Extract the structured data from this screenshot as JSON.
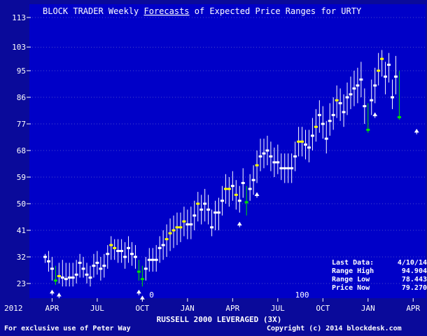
{
  "title_prefix": "BLOCK TRADER Weekly ",
  "title_link": "Forecasts",
  "title_suffix": " of Expected Price Ranges for URTY",
  "x_axis_title": "RUSSELL 2000 LEVERAGED (3X)",
  "footer_left": "For exclusive use of Peter Way",
  "footer_right": "Copyright (c) 2014 blockdesk.com",
  "summary": {
    "last_data_label": "Last Data:",
    "last_data_value": "4/10/14",
    "range_high_label": "Range High",
    "range_high_value": "94.904",
    "range_low_label": "Range Low",
    "range_low_value": "78.443",
    "price_now_label": "Price Now",
    "price_now_value": "79.270"
  },
  "colors": {
    "background": "#0a0a9a",
    "plot_background": "#0000c8",
    "range_line": "#ffffff",
    "price_white": "#ffffff",
    "price_yellow": "#ffff00",
    "price_green": "#00e000",
    "grid": "#9090d0"
  },
  "chart_data": {
    "type": "range_bars",
    "title": "BLOCK TRADER Weekly Forecasts of Expected Price Ranges for URTY",
    "xlabel": "RUSSELL 2000 LEVERAGED (3X)",
    "ylim": [
      19,
      116
    ],
    "y_ticks": [
      23,
      32,
      41,
      50,
      59,
      68,
      77,
      86,
      95,
      103,
      113
    ],
    "x_ticks": [
      {
        "week": 2,
        "label": "APR"
      },
      {
        "week": 15,
        "label": "JUL"
      },
      {
        "week": 28,
        "label": "OCT"
      },
      {
        "week": 41,
        "label": "JAN"
      },
      {
        "week": 54,
        "label": "APR"
      },
      {
        "week": 67,
        "label": "JUL"
      },
      {
        "week": 80,
        "label": "OCT"
      },
      {
        "week": 93,
        "label": "JAN"
      },
      {
        "week": 106,
        "label": "APR"
      }
    ],
    "year_label": "2012",
    "x_annotations": [
      {
        "week": 30,
        "text": "0"
      },
      {
        "week": 72,
        "text": "100"
      }
    ],
    "arrow_weeks": [
      2,
      4,
      27,
      28,
      56,
      61,
      95,
      107
    ],
    "bars": [
      {
        "week": 0,
        "low": 30,
        "high": 33,
        "price": 32,
        "flag": "white"
      },
      {
        "week": 1,
        "low": 27,
        "high": 34,
        "price": 30.5,
        "flag": "white"
      },
      {
        "week": 2,
        "low": 24,
        "high": 32,
        "price": 28,
        "flag": "white"
      },
      {
        "week": 3,
        "low": 22.5,
        "high": 29,
        "price": 24,
        "flag": "green"
      },
      {
        "week": 4,
        "low": 23,
        "high": 30,
        "price": 25.5,
        "flag": "yellow"
      },
      {
        "week": 5,
        "low": 22,
        "high": 31,
        "price": 25,
        "flag": "white"
      },
      {
        "week": 6,
        "low": 22,
        "high": 30,
        "price": 24.5,
        "flag": "white"
      },
      {
        "week": 7,
        "low": 22,
        "high": 30,
        "price": 25,
        "flag": "white"
      },
      {
        "week": 8,
        "low": 22,
        "high": 30,
        "price": 25,
        "flag": "white"
      },
      {
        "week": 9,
        "low": 23,
        "high": 31,
        "price": 26,
        "flag": "white"
      },
      {
        "week": 10,
        "low": 25,
        "high": 33,
        "price": 30,
        "flag": "white"
      },
      {
        "week": 11,
        "low": 25,
        "high": 32,
        "price": 28,
        "flag": "white"
      },
      {
        "week": 12,
        "low": 23,
        "high": 30,
        "price": 26,
        "flag": "white"
      },
      {
        "week": 13,
        "low": 22,
        "high": 29,
        "price": 25,
        "flag": "white"
      },
      {
        "week": 14,
        "low": 25,
        "high": 33,
        "price": 29,
        "flag": "white"
      },
      {
        "week": 15,
        "low": 26,
        "high": 34,
        "price": 30,
        "flag": "white"
      },
      {
        "week": 16,
        "low": 24,
        "high": 32,
        "price": 28,
        "flag": "white"
      },
      {
        "week": 17,
        "low": 25,
        "high": 33,
        "price": 29,
        "flag": "white"
      },
      {
        "week": 18,
        "low": 28,
        "high": 36,
        "price": 33,
        "flag": "white"
      },
      {
        "week": 19,
        "low": 31,
        "high": 39,
        "price": 36,
        "flag": "yellow"
      },
      {
        "week": 20,
        "low": 31,
        "high": 38,
        "price": 35,
        "flag": "yellow"
      },
      {
        "week": 21,
        "low": 30,
        "high": 38,
        "price": 34,
        "flag": "white"
      },
      {
        "week": 22,
        "low": 30,
        "high": 38,
        "price": 34,
        "flag": "white"
      },
      {
        "week": 23,
        "low": 28,
        "high": 37,
        "price": 32,
        "flag": "white"
      },
      {
        "week": 24,
        "low": 30,
        "high": 39,
        "price": 35,
        "flag": "white"
      },
      {
        "week": 25,
        "low": 29,
        "high": 37,
        "price": 33,
        "flag": "white"
      },
      {
        "week": 26,
        "low": 28,
        "high": 36,
        "price": 32,
        "flag": "white"
      },
      {
        "week": 27,
        "low": 24,
        "high": 31,
        "price": 27,
        "flag": "green"
      },
      {
        "week": 28,
        "low": 22,
        "high": 29,
        "price": 24.5,
        "flag": "green"
      },
      {
        "week": 29,
        "low": 24,
        "high": 32,
        "price": 28,
        "flag": "white"
      },
      {
        "week": 30,
        "low": 27,
        "high": 35,
        "price": 31,
        "flag": "white"
      },
      {
        "week": 31,
        "low": 27,
        "high": 35,
        "price": 31,
        "flag": "white"
      },
      {
        "week": 32,
        "low": 27,
        "high": 36,
        "price": 31,
        "flag": "white"
      },
      {
        "week": 33,
        "low": 30,
        "high": 39,
        "price": 35,
        "flag": "white"
      },
      {
        "week": 34,
        "low": 31,
        "high": 41,
        "price": 36,
        "flag": "white"
      },
      {
        "week": 35,
        "low": 32,
        "high": 43,
        "price": 38,
        "flag": "yellow"
      },
      {
        "week": 36,
        "low": 34,
        "high": 45,
        "price": 40,
        "flag": "yellow"
      },
      {
        "week": 37,
        "low": 35,
        "high": 46,
        "price": 41,
        "flag": "yellow"
      },
      {
        "week": 38,
        "low": 36,
        "high": 47,
        "price": 42,
        "flag": "yellow"
      },
      {
        "week": 39,
        "low": 37,
        "high": 47,
        "price": 42,
        "flag": "yellow"
      },
      {
        "week": 40,
        "low": 39,
        "high": 49,
        "price": 44,
        "flag": "yellow"
      },
      {
        "week": 41,
        "low": 38,
        "high": 48,
        "price": 43,
        "flag": "white"
      },
      {
        "week": 42,
        "low": 38,
        "high": 49,
        "price": 43,
        "flag": "white"
      },
      {
        "week": 43,
        "low": 41,
        "high": 51,
        "price": 46,
        "flag": "white"
      },
      {
        "week": 44,
        "low": 44,
        "high": 54,
        "price": 50,
        "flag": "yellow"
      },
      {
        "week": 45,
        "low": 43,
        "high": 53,
        "price": 48,
        "flag": "white"
      },
      {
        "week": 46,
        "low": 44,
        "high": 55,
        "price": 50,
        "flag": "white"
      },
      {
        "week": 47,
        "low": 43,
        "high": 53,
        "price": 48,
        "flag": "white"
      },
      {
        "week": 48,
        "low": 39,
        "high": 48,
        "price": 42,
        "flag": "white"
      },
      {
        "week": 49,
        "low": 41,
        "high": 51,
        "price": 47,
        "flag": "white"
      },
      {
        "week": 50,
        "low": 41,
        "high": 52,
        "price": 47,
        "flag": "white"
      },
      {
        "week": 51,
        "low": 46,
        "high": 56,
        "price": 51,
        "flag": "white"
      },
      {
        "week": 52,
        "low": 50,
        "high": 60,
        "price": 55,
        "flag": "yellow"
      },
      {
        "week": 53,
        "low": 49,
        "high": 59,
        "price": 55,
        "flag": "yellow"
      },
      {
        "week": 54,
        "low": 51,
        "high": 61,
        "price": 56,
        "flag": "white"
      },
      {
        "week": 55,
        "low": 48,
        "high": 58,
        "price": 53,
        "flag": "yellow"
      },
      {
        "week": 56,
        "low": 47,
        "high": 56,
        "price": 51,
        "flag": "white"
      },
      {
        "week": 57,
        "low": 52,
        "high": 62,
        "price": 57,
        "flag": "white"
      },
      {
        "week": 58,
        "low": 46,
        "high": 56,
        "price": 50.5,
        "flag": "green"
      },
      {
        "week": 59,
        "low": 51,
        "high": 60,
        "price": 55,
        "flag": "white"
      },
      {
        "week": 60,
        "low": 53,
        "high": 63,
        "price": 58,
        "flag": "white"
      },
      {
        "week": 61,
        "low": 57,
        "high": 68,
        "price": 63,
        "flag": "yellow"
      },
      {
        "week": 62,
        "low": 61,
        "high": 72,
        "price": 66,
        "flag": "white"
      },
      {
        "week": 63,
        "low": 62,
        "high": 72,
        "price": 67,
        "flag": "white"
      },
      {
        "week": 64,
        "low": 63,
        "high": 73,
        "price": 68,
        "flag": "white"
      },
      {
        "week": 65,
        "low": 61,
        "high": 71,
        "price": 66,
        "flag": "white"
      },
      {
        "week": 66,
        "low": 59,
        "high": 69,
        "price": 64,
        "flag": "white"
      },
      {
        "week": 67,
        "low": 60,
        "high": 70,
        "price": 64,
        "flag": "white"
      },
      {
        "week": 68,
        "low": 58,
        "high": 67,
        "price": 62,
        "flag": "white"
      },
      {
        "week": 69,
        "low": 57,
        "high": 67,
        "price": 62,
        "flag": "white"
      },
      {
        "week": 70,
        "low": 57,
        "high": 67,
        "price": 62,
        "flag": "white"
      },
      {
        "week": 71,
        "low": 57,
        "high": 67,
        "price": 62,
        "flag": "white"
      },
      {
        "week": 72,
        "low": 61,
        "high": 71,
        "price": 66,
        "flag": "white"
      },
      {
        "week": 73,
        "low": 66,
        "high": 76,
        "price": 71,
        "flag": "yellow"
      },
      {
        "week": 74,
        "low": 66,
        "high": 76,
        "price": 71,
        "flag": "yellow"
      },
      {
        "week": 75,
        "low": 65,
        "high": 75,
        "price": 70,
        "flag": "white"
      },
      {
        "week": 76,
        "low": 64,
        "high": 75,
        "price": 69,
        "flag": "white"
      },
      {
        "week": 77,
        "low": 68,
        "high": 79,
        "price": 73,
        "flag": "white"
      },
      {
        "week": 78,
        "low": 71,
        "high": 82,
        "price": 76,
        "flag": "yellow"
      },
      {
        "week": 79,
        "low": 74,
        "high": 85,
        "price": 80,
        "flag": "white"
      },
      {
        "week": 80,
        "low": 72,
        "high": 83,
        "price": 77,
        "flag": "white"
      },
      {
        "week": 81,
        "low": 67,
        "high": 78,
        "price": 72,
        "flag": "white"
      },
      {
        "week": 82,
        "low": 73,
        "high": 84,
        "price": 78,
        "flag": "white"
      },
      {
        "week": 83,
        "low": 75,
        "high": 86,
        "price": 80,
        "flag": "white"
      },
      {
        "week": 84,
        "low": 79,
        "high": 90,
        "price": 85,
        "flag": "yellow"
      },
      {
        "week": 85,
        "low": 78,
        "high": 89,
        "price": 84,
        "flag": "white"
      },
      {
        "week": 86,
        "low": 76,
        "high": 87,
        "price": 81,
        "flag": "white"
      },
      {
        "week": 87,
        "low": 80,
        "high": 91,
        "price": 86,
        "flag": "white"
      },
      {
        "week": 88,
        "low": 82,
        "high": 93,
        "price": 87,
        "flag": "white"
      },
      {
        "week": 89,
        "low": 83,
        "high": 95,
        "price": 89,
        "flag": "white"
      },
      {
        "week": 90,
        "low": 84,
        "high": 96,
        "price": 90,
        "flag": "white"
      },
      {
        "week": 91,
        "low": 86,
        "high": 98,
        "price": 92,
        "flag": "white"
      },
      {
        "week": 92,
        "low": 77,
        "high": 89,
        "price": 83,
        "flag": "white"
      },
      {
        "week": 93,
        "low": 74,
        "high": 84,
        "price": 75,
        "flag": "green"
      },
      {
        "week": 94,
        "low": 80,
        "high": 92,
        "price": 85,
        "flag": "white"
      },
      {
        "week": 95,
        "low": 84,
        "high": 96,
        "price": 90,
        "flag": "white"
      },
      {
        "week": 96,
        "low": 90,
        "high": 101,
        "price": 95,
        "flag": "yellow"
      },
      {
        "week": 97,
        "low": 93,
        "high": 102,
        "price": 99,
        "flag": "yellow"
      },
      {
        "week": 98,
        "low": 87,
        "high": 98,
        "price": 93,
        "flag": "white"
      },
      {
        "week": 99,
        "low": 91,
        "high": 101,
        "price": 97,
        "flag": "white"
      },
      {
        "week": 100,
        "low": 82,
        "high": 92,
        "price": 86,
        "flag": "white"
      },
      {
        "week": 101,
        "low": 87,
        "high": 100,
        "price": 93,
        "flag": "white"
      },
      {
        "week": 102,
        "low": 78.443,
        "high": 94.904,
        "price": 79.27,
        "flag": "green"
      }
    ]
  }
}
